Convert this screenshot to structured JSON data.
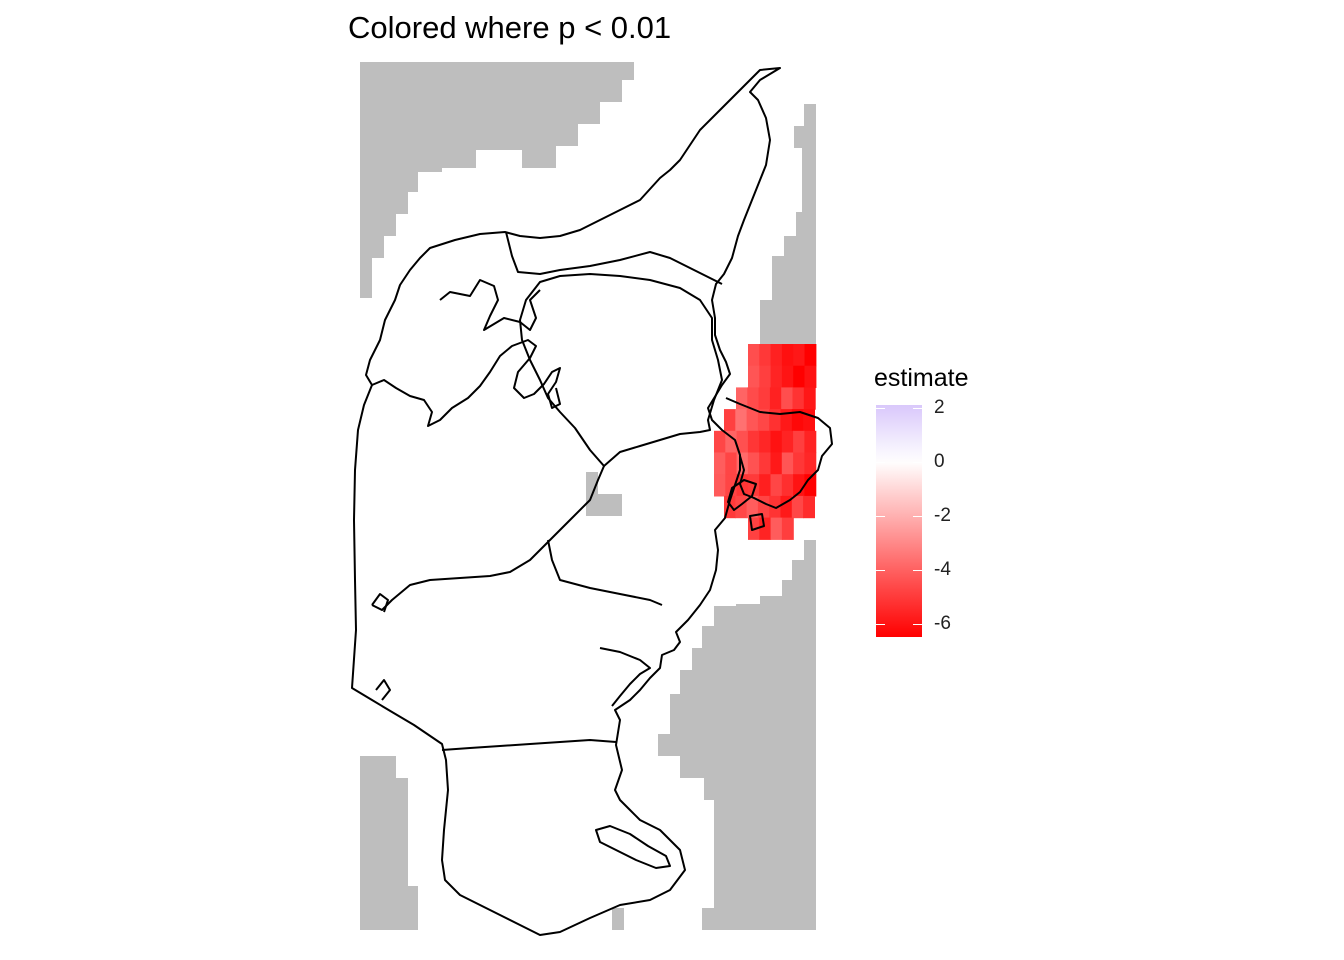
{
  "title": "Colored where p < 0.01",
  "legend": {
    "title": "estimate",
    "min": -6.5,
    "max": 2.1,
    "ticks": [
      2,
      0,
      -2,
      -4,
      -6
    ],
    "tick_labels": [
      "2",
      "0",
      "-2",
      "-4",
      "-6"
    ],
    "colors": {
      "high": "#D9C8FB",
      "mid": "#FFFFFF",
      "low": "#FF0000"
    }
  },
  "colors": {
    "non_significant": "#BEBEBE",
    "outline": "#000000",
    "land": "#FFFFFF"
  },
  "map_data": {
    "type": "heatmap",
    "xlabel": "",
    "ylabel": "",
    "significant_estimates": [
      -5.2,
      -5.6,
      -6.0,
      -6.2,
      -5.8,
      -6.3,
      -5.0,
      -5.4,
      -5.9,
      -6.1,
      -6.4,
      -5.7,
      -4.8,
      -5.3,
      -5.5,
      -6.0,
      -4.6,
      -5.1,
      -5.6,
      -6.2,
      -4.4,
      -5.0
    ]
  }
}
